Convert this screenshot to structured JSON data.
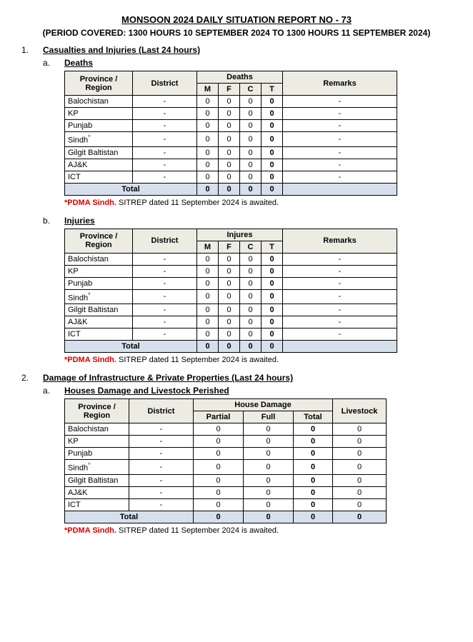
{
  "title": "MONSOON 2024 DAILY SITUATION REPORT NO - 73",
  "period": "(PERIOD COVERED: 1300 HOURS 10 SEPTEMBER 2024 TO 1300 HOURS 11 SEPTEMBER 2024)",
  "section1": {
    "num": "1.",
    "heading": "Casualties and Injuries (Last 24 hours)",
    "a": {
      "letter": "a.",
      "heading": "Deaths"
    },
    "b": {
      "letter": "b.",
      "heading": "Injuries"
    }
  },
  "section2": {
    "num": "2.",
    "heading": "Damage of Infrastructure & Private Properties (Last 24 hours)",
    "a": {
      "letter": "a.",
      "heading": "Houses Damage and Livestock Perished"
    }
  },
  "headers": {
    "province": "Province / Region",
    "district": "District",
    "deaths": "Deaths",
    "injures": "Injures",
    "remarks": "Remarks",
    "m": "M",
    "f": "F",
    "c": "C",
    "t": "T",
    "houseDamage": "House Damage",
    "partial": "Partial",
    "full": "Full",
    "total": "Total",
    "livestock": "Livestock",
    "totalRow": "Total"
  },
  "regions": {
    "balochistan": "Balochistan",
    "kp": "KP",
    "punjab": "Punjab",
    "sindh": "Sindh",
    "gb": "Gilgit Baltistan",
    "ajk": "AJ&K",
    "ict": "ICT"
  },
  "deaths": {
    "rows": [
      {
        "district": "-",
        "m": "0",
        "f": "0",
        "c": "0",
        "t": "0",
        "remarks": "-"
      },
      {
        "district": "-",
        "m": "0",
        "f": "0",
        "c": "0",
        "t": "0",
        "remarks": "-"
      },
      {
        "district": "-",
        "m": "0",
        "f": "0",
        "c": "0",
        "t": "0",
        "remarks": "-"
      },
      {
        "district": "-",
        "m": "0",
        "f": "0",
        "c": "0",
        "t": "0",
        "remarks": "-"
      },
      {
        "district": "-",
        "m": "0",
        "f": "0",
        "c": "0",
        "t": "0",
        "remarks": "-"
      },
      {
        "district": "-",
        "m": "0",
        "f": "0",
        "c": "0",
        "t": "0",
        "remarks": "-"
      },
      {
        "district": "-",
        "m": "0",
        "f": "0",
        "c": "0",
        "t": "0",
        "remarks": "-"
      }
    ],
    "total": {
      "m": "0",
      "f": "0",
      "c": "0",
      "t": "0"
    }
  },
  "injuries": {
    "rows": [
      {
        "district": "-",
        "m": "0",
        "f": "0",
        "c": "0",
        "t": "0",
        "remarks": "-"
      },
      {
        "district": "-",
        "m": "0",
        "f": "0",
        "c": "0",
        "t": "0",
        "remarks": "-"
      },
      {
        "district": "-",
        "m": "0",
        "f": "0",
        "c": "0",
        "t": "0",
        "remarks": "-"
      },
      {
        "district": "-",
        "m": "0",
        "f": "0",
        "c": "0",
        "t": "0",
        "remarks": "-"
      },
      {
        "district": "-",
        "m": "0",
        "f": "0",
        "c": "0",
        "t": "0",
        "remarks": "-"
      },
      {
        "district": "-",
        "m": "0",
        "f": "0",
        "c": "0",
        "t": "0",
        "remarks": "-"
      },
      {
        "district": "-",
        "m": "0",
        "f": "0",
        "c": "0",
        "t": "0",
        "remarks": "-"
      }
    ],
    "total": {
      "m": "0",
      "f": "0",
      "c": "0",
      "t": "0"
    }
  },
  "houses": {
    "rows": [
      {
        "district": "-",
        "partial": "0",
        "full": "0",
        "total": "0",
        "livestock": "0"
      },
      {
        "district": "-",
        "partial": "0",
        "full": "0",
        "total": "0",
        "livestock": "0"
      },
      {
        "district": "-",
        "partial": "0",
        "full": "0",
        "total": "0",
        "livestock": "0"
      },
      {
        "district": "-",
        "partial": "0",
        "full": "0",
        "total": "0",
        "livestock": "0"
      },
      {
        "district": "-",
        "partial": "0",
        "full": "0",
        "total": "0",
        "livestock": "0"
      },
      {
        "district": "-",
        "partial": "0",
        "full": "0",
        "total": "0",
        "livestock": "0"
      },
      {
        "district": "-",
        "partial": "0",
        "full": "0",
        "total": "0",
        "livestock": "0"
      }
    ],
    "total": {
      "partial": "0",
      "full": "0",
      "total": "0",
      "livestock": "0"
    }
  },
  "note": {
    "prefix": "*PDMA Sindh.",
    "text": " SITREP dated 11 September 2024 is awaited."
  },
  "star": "*"
}
